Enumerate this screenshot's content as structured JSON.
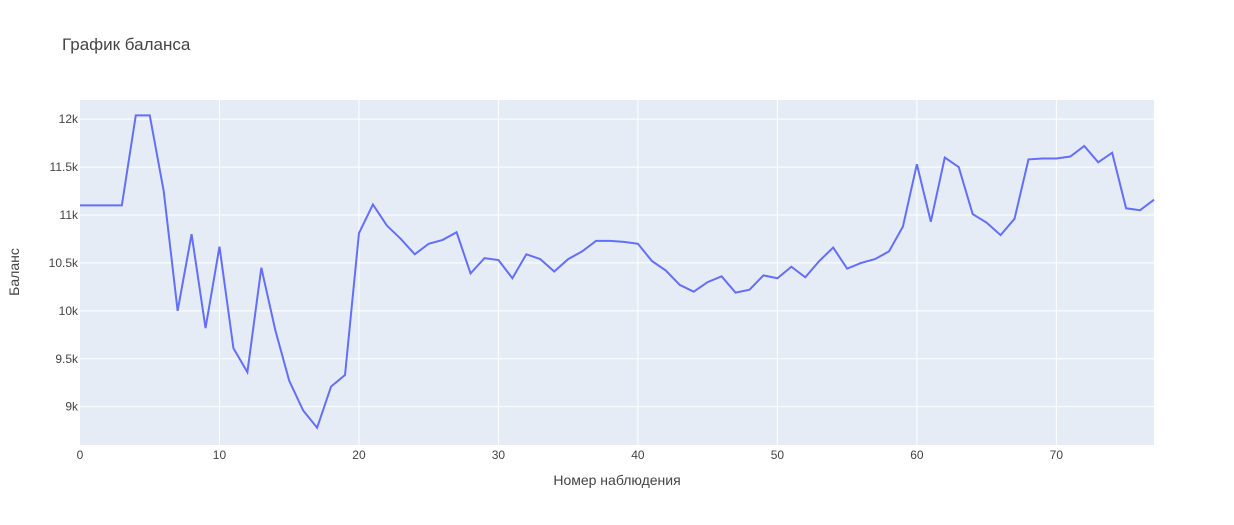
{
  "chart_data": {
    "type": "line",
    "title": "График баланса",
    "xlabel": "Номер наблюдения",
    "ylabel": "Баланс",
    "xlim": [
      0,
      77
    ],
    "ylim": [
      8600,
      12200
    ],
    "grid": true,
    "x_ticks": [
      0,
      10,
      20,
      30,
      40,
      50,
      60,
      70
    ],
    "y_ticks": [
      9000,
      9500,
      10000,
      10500,
      11000,
      11500,
      12000
    ],
    "y_tick_labels": [
      "9k",
      "9.5k",
      "10k",
      "10.5k",
      "11k",
      "11.5k",
      "12k"
    ],
    "line_color": "#636efa",
    "plot_bg": "#e5ecf6",
    "grid_color": "#ffffff",
    "series": [
      {
        "x": [
          0,
          1,
          2,
          3,
          4,
          5,
          6,
          7,
          8,
          9,
          10,
          11,
          12,
          13,
          14,
          15,
          16,
          17,
          18,
          19,
          20,
          21,
          22,
          23,
          24,
          25,
          26,
          27,
          28,
          29,
          30,
          31,
          32,
          33,
          34,
          35,
          36,
          37,
          38,
          39,
          40,
          41,
          42,
          43,
          44,
          45,
          46,
          47,
          48,
          49,
          50,
          51,
          52,
          53,
          54,
          55,
          56,
          57,
          58,
          59,
          60,
          61,
          62,
          63,
          64,
          65,
          66,
          67,
          68,
          69,
          70,
          71,
          72,
          73,
          74,
          75,
          76,
          77
        ],
        "values": [
          11100,
          11100,
          11100,
          11100,
          12040,
          12040,
          11250,
          10000,
          10800,
          9820,
          10670,
          9610,
          9360,
          10450,
          9800,
          9270,
          8960,
          8780,
          9210,
          9330,
          10810,
          11110,
          10890,
          10750,
          10590,
          10700,
          10740,
          10820,
          10390,
          10550,
          10530,
          10340,
          10590,
          10540,
          10410,
          10540,
          10620,
          10730,
          10730,
          10720,
          10700,
          10520,
          10420,
          10270,
          10200,
          10300,
          10360,
          10190,
          10220,
          10370,
          10340,
          10460,
          10350,
          10520,
          10660,
          10440,
          10500,
          10540,
          10620,
          10880,
          11530,
          10930,
          11600,
          11500,
          11010,
          10920,
          10790,
          10960,
          11580,
          11590,
          11590,
          11610,
          11720,
          11550,
          11650,
          11070,
          11050,
          11160
        ]
      }
    ]
  }
}
